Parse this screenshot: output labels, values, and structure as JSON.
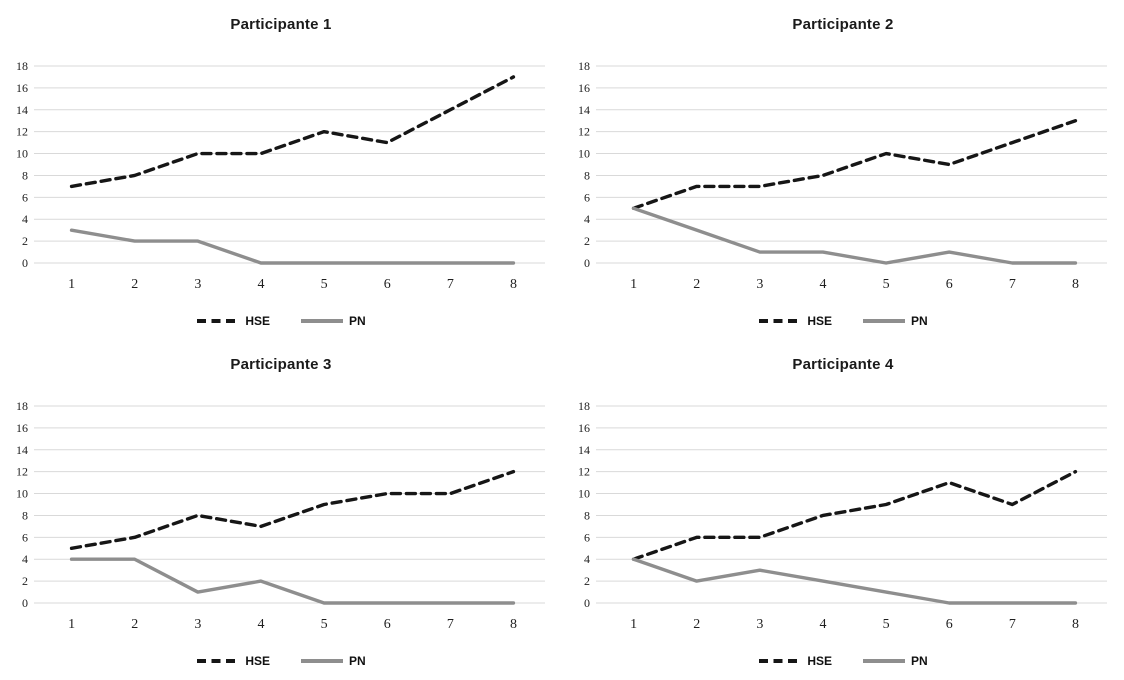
{
  "colors": {
    "hse_line": "#161616",
    "pn_line": "#8e8e8e",
    "gridline": "#d9d9d9",
    "tick_text": "#1f1f1f"
  },
  "chart_data": [
    {
      "type": "line",
      "title": "Participante 1",
      "x": [
        1,
        2,
        3,
        4,
        5,
        6,
        7,
        8
      ],
      "xlabel": "",
      "ylabel": "",
      "ylim": [
        0,
        18
      ],
      "ytick_step": 2,
      "grid": true,
      "legend_position": "bottom",
      "series": [
        {
          "name": "HSE",
          "style": "dashed",
          "color": "#161616",
          "values": [
            7,
            8,
            10,
            10,
            12,
            11,
            14,
            17
          ]
        },
        {
          "name": "PN",
          "style": "solid",
          "color": "#8e8e8e",
          "values": [
            3,
            2,
            2,
            0,
            0,
            0,
            0,
            0
          ]
        }
      ]
    },
    {
      "type": "line",
      "title": "Participante 2",
      "x": [
        1,
        2,
        3,
        4,
        5,
        6,
        7,
        8
      ],
      "xlabel": "",
      "ylabel": "",
      "ylim": [
        0,
        18
      ],
      "ytick_step": 2,
      "grid": true,
      "legend_position": "bottom",
      "series": [
        {
          "name": "HSE",
          "style": "dashed",
          "color": "#161616",
          "values": [
            5,
            7,
            7,
            8,
            10,
            9,
            11,
            13
          ]
        },
        {
          "name": "PN",
          "style": "solid",
          "color": "#8e8e8e",
          "values": [
            5,
            3,
            1,
            1,
            0,
            1,
            0,
            0
          ]
        }
      ]
    },
    {
      "type": "line",
      "title": "Participante 3",
      "x": [
        1,
        2,
        3,
        4,
        5,
        6,
        7,
        8
      ],
      "xlabel": "",
      "ylabel": "",
      "ylim": [
        0,
        18
      ],
      "ytick_step": 2,
      "grid": true,
      "legend_position": "bottom",
      "series": [
        {
          "name": "HSE",
          "style": "dashed",
          "color": "#161616",
          "values": [
            5,
            6,
            8,
            7,
            9,
            10,
            10,
            12
          ]
        },
        {
          "name": "PN",
          "style": "solid",
          "color": "#8e8e8e",
          "values": [
            4,
            4,
            1,
            2,
            0,
            0,
            0,
            0
          ]
        }
      ]
    },
    {
      "type": "line",
      "title": "Participante 4",
      "x": [
        1,
        2,
        3,
        4,
        5,
        6,
        7,
        8
      ],
      "xlabel": "",
      "ylabel": "",
      "ylim": [
        0,
        18
      ],
      "ytick_step": 2,
      "grid": true,
      "legend_position": "bottom",
      "series": [
        {
          "name": "HSE",
          "style": "dashed",
          "color": "#161616",
          "values": [
            4,
            6,
            6,
            8,
            9,
            11,
            9,
            12
          ]
        },
        {
          "name": "PN",
          "style": "solid",
          "color": "#8e8e8e",
          "values": [
            4,
            2,
            3,
            2,
            1,
            0,
            0,
            0
          ]
        }
      ]
    }
  ]
}
